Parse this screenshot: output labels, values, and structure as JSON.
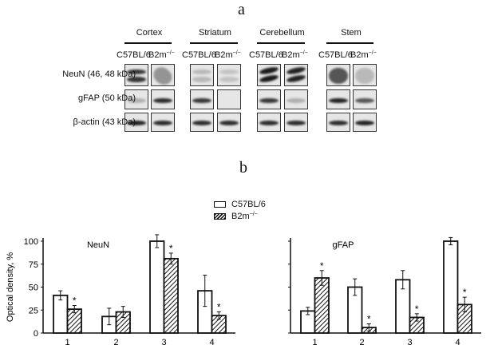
{
  "panel_a": {
    "letter": "a",
    "tissues": [
      "Cortex",
      "Striatum",
      "Cerebellum",
      "Stem"
    ],
    "strains": [
      "C57BL/6",
      "B2m"
    ],
    "strain_superscript": "−/−",
    "rows": [
      "NeuN (46, 48 kDa)",
      "gFAP (50 kDa)",
      "β-actin (43 kDa)"
    ]
  },
  "panel_b": {
    "letter": "b",
    "legend": [
      {
        "label": "C57BL/6",
        "pattern": "open"
      },
      {
        "label": "B2m",
        "superscript": "−/−",
        "pattern": "hatched"
      }
    ]
  },
  "chart_data": [
    {
      "type": "bar",
      "title": "NeuN",
      "ylabel": "Optical density, %",
      "xlabel": "",
      "categories": [
        "1",
        "2",
        "3",
        "4"
      ],
      "ylim": [
        0,
        100
      ],
      "yticks": [
        0,
        25,
        50,
        75,
        100
      ],
      "grid": false,
      "legend_position": "top-center",
      "series": [
        {
          "name": "C57BL/6",
          "values": [
            41,
            18,
            100,
            46
          ],
          "error": [
            5,
            9,
            7,
            17
          ]
        },
        {
          "name": "B2m−/−",
          "values": [
            26,
            23,
            81,
            19
          ],
          "error": [
            4,
            6,
            6,
            4
          ],
          "significant": [
            true,
            false,
            true,
            true
          ]
        }
      ],
      "annotations": [
        "*"
      ]
    },
    {
      "type": "bar",
      "title": "gFAP",
      "ylabel": "",
      "xlabel": "",
      "categories": [
        "1",
        "2",
        "3",
        "4"
      ],
      "ylim": [
        0,
        100
      ],
      "yticks": [
        0,
        25,
        50,
        75,
        100
      ],
      "grid": false,
      "series": [
        {
          "name": "C57BL/6",
          "values": [
            24,
            50,
            58,
            100
          ],
          "error": [
            4,
            9,
            10,
            4
          ]
        },
        {
          "name": "B2m−/−",
          "values": [
            60,
            6,
            17,
            31
          ],
          "error": [
            8,
            4,
            4,
            8
          ],
          "significant": [
            true,
            true,
            true,
            true
          ]
        }
      ],
      "annotations": [
        "*"
      ]
    }
  ]
}
